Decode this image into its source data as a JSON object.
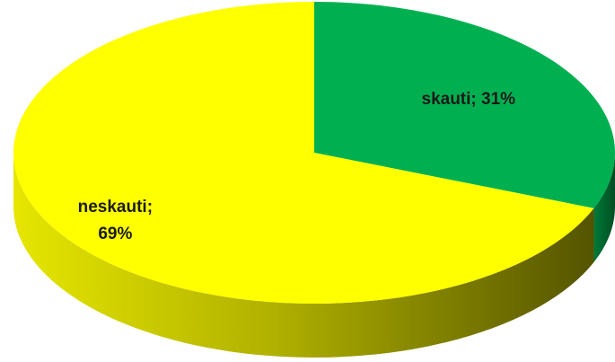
{
  "chart_data": {
    "type": "pie",
    "values": [
      31,
      69
    ],
    "value_labels": [
      "skauti; 31%",
      "neskauti; 69%"
    ],
    "colors": [
      "#00b050",
      "#ffff00"
    ]
  }
}
